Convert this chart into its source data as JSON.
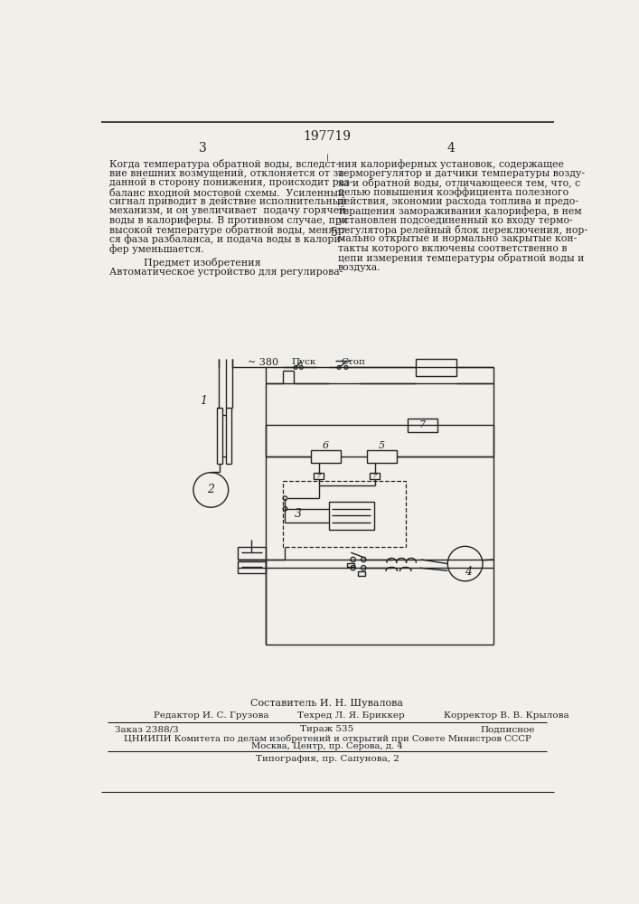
{
  "title_number": "197719",
  "page_left": "3",
  "page_right": "4",
  "col_number": "5",
  "text_left": [
    "Когда температура обратной воды, вследст-",
    "вие внешних возмущений, отклоняется от за-",
    "данной в сторону понижения, происходит раз-",
    "баланс входной мостовой схемы.  Усиленный",
    "сигнал приводит в действие исполнительный",
    "механизм, и он увеличивает  подачу горячей",
    "воды в калориферы. В противном случае, при",
    "высокой температуре обратной воды, меняет-",
    "ся фаза разбаланса, и подача воды в калори-",
    "фер уменьшается."
  ],
  "subject_heading": "Предмет изобретения",
  "subject_text": "Автоматическое устройство для регулирова-",
  "text_right": [
    "ния калориферных установок, содержащее",
    "терморегулятор и датчики температуры возду-",
    "ха и обратной воды, отличающееся тем, что, с",
    "целью повышения коэффициента полезного",
    "действия, экономии расхода топлива и предо-",
    "твращения замораживания калорифера, в нем",
    "установлен подсоединенный ко входу термо-",
    "регулятора релейный блок переключения, нор-",
    "мально открытые и нормально закрытые кон-",
    "такты которого включены соответственно в",
    "цепи измерения температуры обратной воды и",
    "воздуха."
  ],
  "footer_composer": "Составитель И. Н. Шувалова",
  "footer_editor": "Редактор И. С. Грузова",
  "footer_techred": "Техред Л. Я. Бриккер",
  "footer_corrector": "Корректор В. В. Крылова",
  "footer_order": "Заказ 2388/3",
  "footer_circulation": "Тираж 535",
  "footer_subscription": "Подписное",
  "footer_org": "ЦНИИПИ Комитета по делам изобретений и открытий при Совете Министров СССР",
  "footer_address": "Москва, Центр, пр. Серова, д. 4",
  "footer_typography": "Типография, пр. Сапунова, 2",
  "bg_color": "#f0efea",
  "line_color": "#222222",
  "text_color": "#222222"
}
